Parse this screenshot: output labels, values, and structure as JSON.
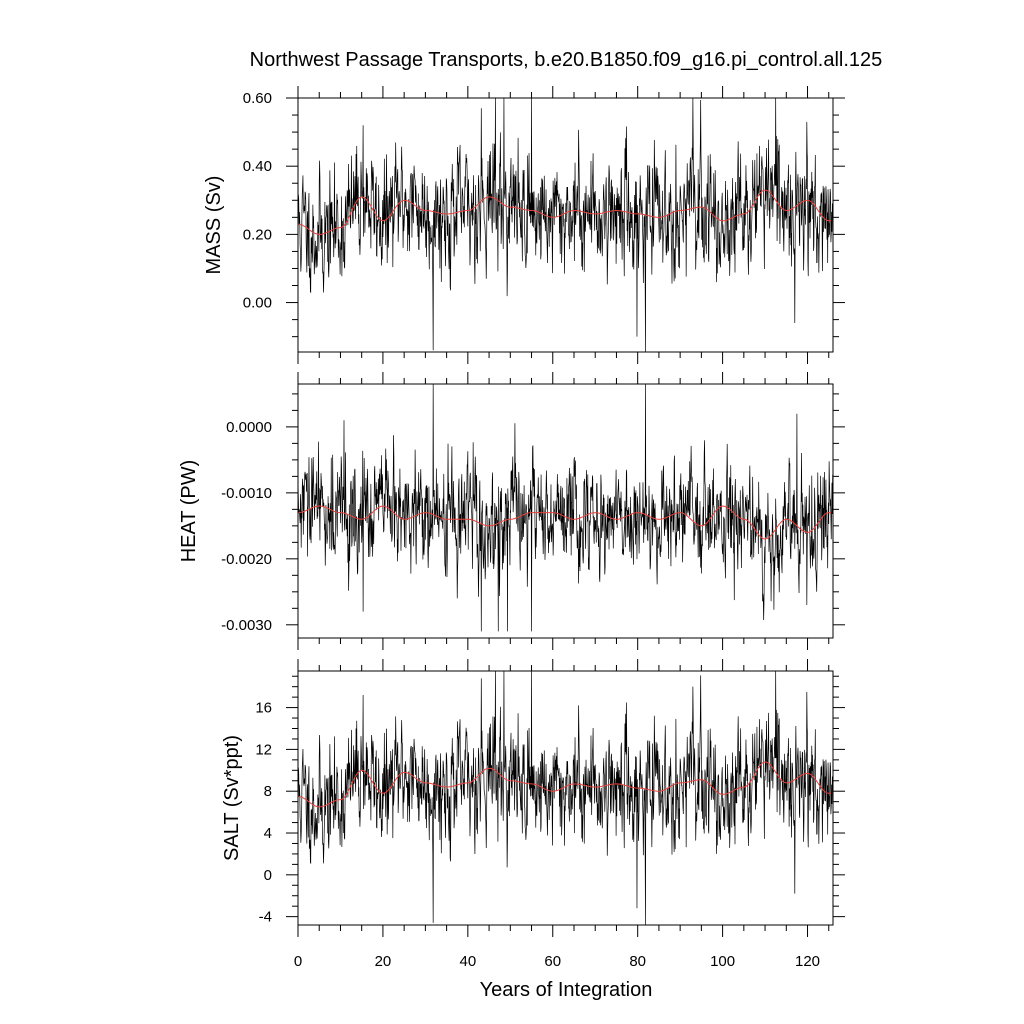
{
  "title": "Northwest Passage Transports, b.e20.B1850.f09_g16.pi_control.all.125",
  "xlabel": "Years of Integration",
  "colors": {
    "series": "#000000",
    "smooth": "#e8413b",
    "frame": "#000000"
  },
  "chart_data": [
    {
      "type": "line",
      "ylabel": "MASS (Sv)",
      "xlim": [
        0,
        126
      ],
      "ylim": [
        -0.145,
        0.6
      ],
      "xticks": [
        0,
        20,
        40,
        60,
        80,
        100,
        120
      ],
      "yticks": [
        0.0,
        0.2,
        0.4,
        0.6
      ],
      "ytick_labels": [
        "0.00",
        "0.20",
        "0.40",
        "0.60"
      ],
      "baseline": 0.26,
      "amplitude": 0.085,
      "seed": 11,
      "spikes": [
        {
          "x": 31.8,
          "y": -0.14
        },
        {
          "x": 15.3,
          "y": 0.52
        },
        {
          "x": 43.2,
          "y": 0.57
        },
        {
          "x": 46.5,
          "y": 0.6
        },
        {
          "x": 48.5,
          "y": 0.6
        },
        {
          "x": 55.0,
          "y": 0.6
        },
        {
          "x": 79.8,
          "y": -0.1
        },
        {
          "x": 81.8,
          "y": -0.145
        },
        {
          "x": 93.0,
          "y": 0.6
        },
        {
          "x": 117.0,
          "y": -0.06
        },
        {
          "x": 119.8,
          "y": 0.53
        }
      ],
      "smooth_series": [
        {
          "x": 0,
          "y": 0.23
        },
        {
          "x": 5,
          "y": 0.2
        },
        {
          "x": 10,
          "y": 0.22
        },
        {
          "x": 15,
          "y": 0.31
        },
        {
          "x": 20,
          "y": 0.24
        },
        {
          "x": 25,
          "y": 0.3
        },
        {
          "x": 30,
          "y": 0.27
        },
        {
          "x": 35,
          "y": 0.26
        },
        {
          "x": 40,
          "y": 0.27
        },
        {
          "x": 45,
          "y": 0.31
        },
        {
          "x": 50,
          "y": 0.28
        },
        {
          "x": 55,
          "y": 0.27
        },
        {
          "x": 60,
          "y": 0.25
        },
        {
          "x": 65,
          "y": 0.27
        },
        {
          "x": 70,
          "y": 0.26
        },
        {
          "x": 75,
          "y": 0.27
        },
        {
          "x": 80,
          "y": 0.26
        },
        {
          "x": 85,
          "y": 0.25
        },
        {
          "x": 90,
          "y": 0.27
        },
        {
          "x": 95,
          "y": 0.28
        },
        {
          "x": 100,
          "y": 0.24
        },
        {
          "x": 105,
          "y": 0.26
        },
        {
          "x": 110,
          "y": 0.33
        },
        {
          "x": 115,
          "y": 0.27
        },
        {
          "x": 120,
          "y": 0.3
        },
        {
          "x": 125,
          "y": 0.24
        }
      ]
    },
    {
      "type": "line",
      "ylabel": "HEAT (PW)",
      "xlim": [
        0,
        126
      ],
      "ylim": [
        -0.0032,
        0.00065
      ],
      "xticks": [
        0,
        20,
        40,
        60,
        80,
        100,
        120
      ],
      "yticks": [
        -0.003,
        -0.002,
        -0.001,
        0.0
      ],
      "ytick_labels": [
        "-0.0030",
        "-0.0020",
        "-0.0010",
        "0.0000"
      ],
      "baseline": -0.00135,
      "amplitude": 0.00042,
      "seed": 29,
      "spikes": [
        {
          "x": 31.8,
          "y": 0.00065
        },
        {
          "x": 15.3,
          "y": -0.0028
        },
        {
          "x": 43.2,
          "y": -0.0031
        },
        {
          "x": 47.2,
          "y": -0.0031
        },
        {
          "x": 49.3,
          "y": -0.0031
        },
        {
          "x": 55.0,
          "y": -0.0031
        },
        {
          "x": 81.8,
          "y": 0.00065
        },
        {
          "x": 10.8,
          "y": 0.0001
        },
        {
          "x": 117.5,
          "y": 0.0002
        },
        {
          "x": 119.8,
          "y": -0.0027
        }
      ],
      "smooth_series": [
        {
          "x": 0,
          "y": -0.0013
        },
        {
          "x": 5,
          "y": -0.0012
        },
        {
          "x": 10,
          "y": -0.0013
        },
        {
          "x": 15,
          "y": -0.0014
        },
        {
          "x": 20,
          "y": -0.0012
        },
        {
          "x": 25,
          "y": -0.0014
        },
        {
          "x": 30,
          "y": -0.0013
        },
        {
          "x": 35,
          "y": -0.0014
        },
        {
          "x": 40,
          "y": -0.0014
        },
        {
          "x": 45,
          "y": -0.0015
        },
        {
          "x": 50,
          "y": -0.0014
        },
        {
          "x": 55,
          "y": -0.0013
        },
        {
          "x": 60,
          "y": -0.0013
        },
        {
          "x": 65,
          "y": -0.0014
        },
        {
          "x": 70,
          "y": -0.0013
        },
        {
          "x": 75,
          "y": -0.0014
        },
        {
          "x": 80,
          "y": -0.0013
        },
        {
          "x": 85,
          "y": -0.0014
        },
        {
          "x": 90,
          "y": -0.0013
        },
        {
          "x": 95,
          "y": -0.0015
        },
        {
          "x": 100,
          "y": -0.0012
        },
        {
          "x": 105,
          "y": -0.0014
        },
        {
          "x": 110,
          "y": -0.0017
        },
        {
          "x": 115,
          "y": -0.0014
        },
        {
          "x": 120,
          "y": -0.0016
        },
        {
          "x": 125,
          "y": -0.0013
        }
      ]
    },
    {
      "type": "line",
      "ylabel": "SALT (Sv*ppt)",
      "xlim": [
        0,
        126
      ],
      "ylim": [
        -4.8,
        19.5
      ],
      "xticks": [
        0,
        20,
        40,
        60,
        80,
        100,
        120
      ],
      "yticks": [
        -4,
        0,
        4,
        8,
        12,
        16
      ],
      "ytick_labels": [
        "-4",
        "0",
        "4",
        "8",
        "12",
        "16"
      ],
      "baseline": 8.4,
      "amplitude": 2.7,
      "seed": 11,
      "spikes": [
        {
          "x": 31.8,
          "y": -4.6
        },
        {
          "x": 15.3,
          "y": 17.2
        },
        {
          "x": 43.2,
          "y": 18.8
        },
        {
          "x": 46.5,
          "y": 19.5
        },
        {
          "x": 48.5,
          "y": 19.5
        },
        {
          "x": 55.0,
          "y": 19.5
        },
        {
          "x": 79.8,
          "y": -3.2
        },
        {
          "x": 81.8,
          "y": -4.8
        },
        {
          "x": 93.0,
          "y": 18.0
        },
        {
          "x": 117.0,
          "y": -1.8
        },
        {
          "x": 119.8,
          "y": 17.5
        }
      ],
      "smooth_series": [
        {
          "x": 0,
          "y": 7.5
        },
        {
          "x": 5,
          "y": 6.5
        },
        {
          "x": 10,
          "y": 7.2
        },
        {
          "x": 15,
          "y": 10.0
        },
        {
          "x": 20,
          "y": 7.8
        },
        {
          "x": 25,
          "y": 9.8
        },
        {
          "x": 30,
          "y": 8.8
        },
        {
          "x": 35,
          "y": 8.4
        },
        {
          "x": 40,
          "y": 8.8
        },
        {
          "x": 45,
          "y": 10.2
        },
        {
          "x": 50,
          "y": 9.0
        },
        {
          "x": 55,
          "y": 8.7
        },
        {
          "x": 60,
          "y": 8.0
        },
        {
          "x": 65,
          "y": 8.7
        },
        {
          "x": 70,
          "y": 8.4
        },
        {
          "x": 75,
          "y": 8.7
        },
        {
          "x": 80,
          "y": 8.3
        },
        {
          "x": 85,
          "y": 8.0
        },
        {
          "x": 90,
          "y": 8.8
        },
        {
          "x": 95,
          "y": 9.1
        },
        {
          "x": 100,
          "y": 7.7
        },
        {
          "x": 105,
          "y": 8.4
        },
        {
          "x": 110,
          "y": 10.8
        },
        {
          "x": 115,
          "y": 8.8
        },
        {
          "x": 120,
          "y": 9.7
        },
        {
          "x": 125,
          "y": 7.8
        }
      ]
    }
  ]
}
